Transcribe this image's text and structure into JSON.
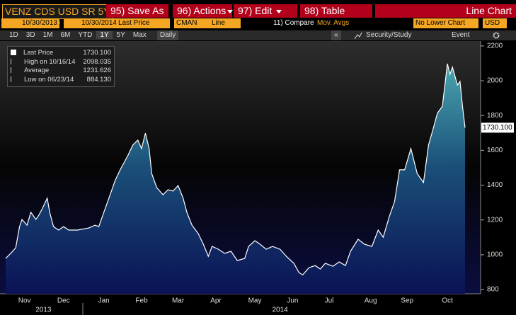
{
  "header": {
    "security": "VENZ CDS USD SR 5Y",
    "menu": [
      "95) Save As",
      "96) Actions",
      "97) Edit",
      "98) Table"
    ],
    "view": "Line Chart"
  },
  "controls": {
    "start_date": "10/30/2013",
    "date_sep": "-",
    "end_date": "10/30/2014",
    "field": "Last Price",
    "source": "CMAN",
    "style": "Line",
    "compare": "11) Compare",
    "mov_avgs": "Mov. Avgs",
    "lower": "No Lower Chart",
    "currency": "USD"
  },
  "toolbar": {
    "ranges": [
      "1D",
      "3D",
      "1M",
      "6M",
      "YTD",
      "1Y",
      "5Y",
      "Max"
    ],
    "period": "Daily",
    "collapse": "«",
    "study": "Security/Study",
    "event": "Event"
  },
  "chart_data": {
    "type": "area",
    "x": [
      0,
      4,
      8,
      11,
      13,
      17,
      20,
      24,
      26,
      29,
      33,
      35,
      38,
      42,
      46,
      50,
      57,
      66,
      71,
      74,
      78,
      83,
      87,
      91,
      97,
      101,
      105,
      108,
      111,
      114,
      116,
      120,
      125,
      129,
      133,
      137,
      141,
      144,
      148,
      153,
      157,
      161,
      164,
      169,
      174,
      179,
      184,
      190,
      193,
      198,
      202,
      207,
      212,
      218,
      223,
      229,
      233,
      236,
      241,
      246,
      250,
      254,
      260,
      265,
      270,
      274,
      280,
      285,
      291,
      296,
      300,
      305,
      309,
      313,
      317,
      322,
      327,
      332,
      336,
      340,
      343,
      347,
      351,
      353,
      355,
      359,
      361,
      363,
      365
    ],
    "series": [
      {
        "name": "Last Price",
        "color": "#ffffff",
        "values": [
          979,
          1008,
          1040,
          1162,
          1203,
          1170,
          1244,
          1203,
          1223,
          1264,
          1325,
          1244,
          1162,
          1142,
          1162,
          1142,
          1142,
          1154,
          1170,
          1162,
          1244,
          1345,
          1427,
          1488,
          1569,
          1630,
          1659,
          1610,
          1699,
          1610,
          1467,
          1386,
          1345,
          1374,
          1366,
          1398,
          1325,
          1244,
          1170,
          1122,
          1061,
          991,
          1048,
          1032,
          1008,
          1020,
          967,
          979,
          1048,
          1081,
          1061,
          1032,
          1048,
          1032,
          991,
          951,
          898,
          884.13,
          926,
          938,
          918,
          951,
          934,
          959,
          938,
          1020,
          1089,
          1061,
          1048,
          1142,
          1101,
          1223,
          1305,
          1488,
          1488,
          1610,
          1467,
          1415,
          1630,
          1732,
          1813,
          1854,
          2098.035,
          2037,
          2078,
          1976,
          1996,
          1854,
          1730.1
        ]
      }
    ],
    "xlim": [
      0,
      365
    ],
    "ylim": [
      776,
      2228
    ],
    "xticks": [
      {
        "value": 15,
        "label": "Nov"
      },
      {
        "value": 46,
        "label": "Dec"
      },
      {
        "value": 78,
        "label": "Jan"
      },
      {
        "value": 108,
        "label": "Feb"
      },
      {
        "value": 137,
        "label": "Mar"
      },
      {
        "value": 167,
        "label": "Apr"
      },
      {
        "value": 198,
        "label": "May"
      },
      {
        "value": 228,
        "label": "Jun"
      },
      {
        "value": 257,
        "label": "Jul"
      },
      {
        "value": 290,
        "label": "Aug"
      },
      {
        "value": 319,
        "label": "Sep"
      },
      {
        "value": 351,
        "label": "Oct"
      }
    ],
    "years": [
      {
        "value": 30,
        "label": "2013"
      },
      {
        "value": 218,
        "label": "2014"
      }
    ],
    "yticks": [
      800,
      1000,
      1200,
      1400,
      1600,
      1800,
      2000,
      2200
    ],
    "grid": false,
    "legend": {
      "labels": [
        "Last Price",
        "High on 10/16/14",
        "Average",
        "Low on 06/23/14"
      ],
      "values": [
        1730.1,
        2098.035,
        1231.626,
        884.13
      ],
      "value_labels": [
        "1730.100",
        "2098.035",
        "1231.626",
        "884.130"
      ]
    }
  }
}
